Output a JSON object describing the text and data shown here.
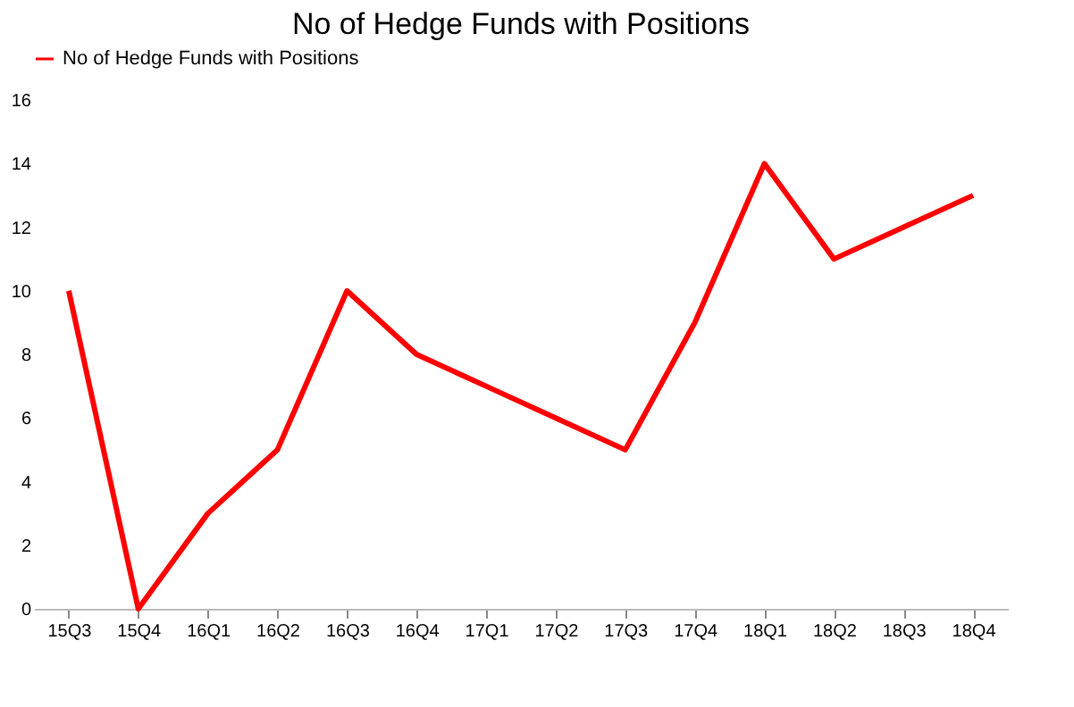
{
  "chart_data": {
    "type": "line",
    "title": "No of Hedge Funds with Positions",
    "categories": [
      "15Q3",
      "15Q4",
      "16Q1",
      "16Q2",
      "16Q3",
      "16Q4",
      "17Q1",
      "17Q2",
      "17Q3",
      "17Q4",
      "18Q1",
      "18Q2",
      "18Q3",
      "18Q4"
    ],
    "series": [
      {
        "name": "No of Hedge Funds with Positions",
        "color": "#ff0000",
        "values": [
          10,
          0,
          3,
          5,
          10,
          8,
          7,
          6,
          5,
          9,
          14,
          11,
          12,
          13
        ]
      }
    ],
    "ylim": [
      0,
      16
    ],
    "yticks": [
      0,
      2,
      4,
      6,
      8,
      10,
      12,
      14,
      16
    ],
    "grid": false,
    "legend": "top",
    "marker": "none",
    "line_style": "solid"
  }
}
